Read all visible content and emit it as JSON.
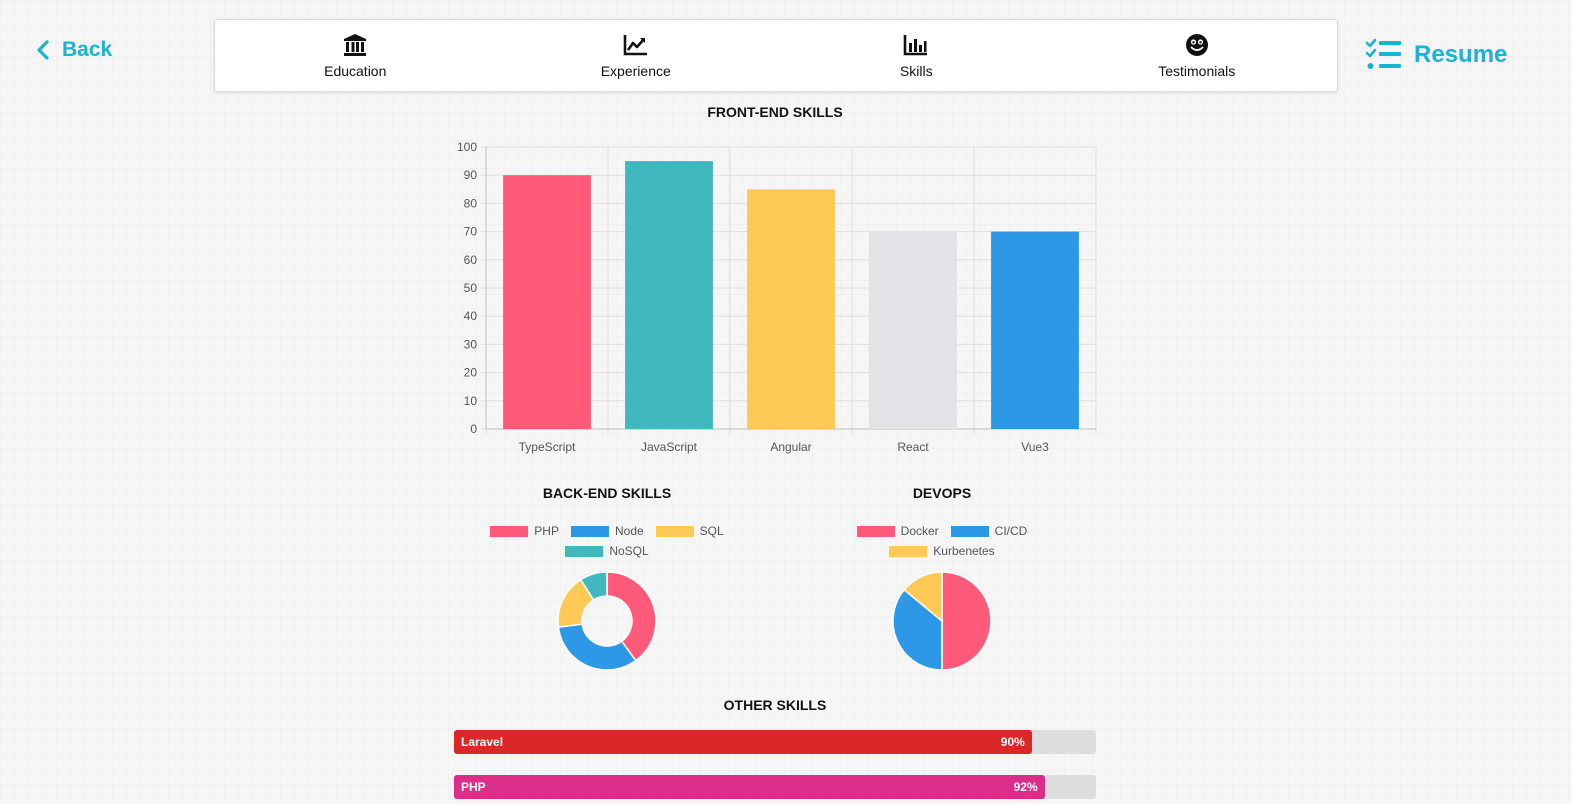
{
  "header": {
    "back_label": "Back",
    "resume_label": "Resume",
    "accent_color": "#1ab3d1",
    "nav": [
      {
        "label": "Education",
        "icon": "bank-icon"
      },
      {
        "label": "Experience",
        "icon": "chart-line-icon"
      },
      {
        "label": "Skills",
        "icon": "bar-chart-icon"
      },
      {
        "label": "Testimonials",
        "icon": "smiley-icon"
      }
    ]
  },
  "sections": {
    "front_end_title": "FRONT-END SKILLS",
    "back_end_title": "BACK-END SKILLS",
    "devops_title": "DEVOPS",
    "other_title": "OTHER SKILLS"
  },
  "chart_data": [
    {
      "type": "bar",
      "title": "FRONT-END SKILLS",
      "categories": [
        "TypeScript",
        "JavaScript",
        "Angular",
        "React",
        "Vue3"
      ],
      "values": [
        90,
        95,
        85,
        70,
        70
      ],
      "colors": [
        "#ff5a7a",
        "#41b8bd",
        "#ffc956",
        "#e1e3e6",
        "#2d98e6"
      ],
      "ylim": [
        0,
        100
      ],
      "yticks": [
        0,
        10,
        20,
        30,
        40,
        50,
        60,
        70,
        80,
        90,
        100
      ],
      "grid": true
    },
    {
      "type": "pie",
      "variant": "doughnut",
      "title": "BACK-END SKILLS",
      "labels": [
        "PHP",
        "Node",
        "SQL",
        "NoSQL"
      ],
      "values": [
        40,
        33,
        18,
        9
      ],
      "colors": [
        "#ff5a7a",
        "#2d98e6",
        "#ffc956",
        "#41b8bd"
      ],
      "legend": "top"
    },
    {
      "type": "pie",
      "title": "DEVOPS",
      "labels": [
        "Docker",
        "CI/CD",
        "Kurbenetes"
      ],
      "values": [
        50,
        36,
        14
      ],
      "colors": [
        "#ff5a7a",
        "#2d98e6",
        "#ffc956"
      ],
      "legend": "top"
    }
  ],
  "other_skills": [
    {
      "name": "Laravel",
      "percent": 90,
      "label": "90%",
      "color": "#dc2727"
    },
    {
      "name": "PHP",
      "percent": 92,
      "label": "92%",
      "color": "#dd2d8a"
    }
  ]
}
